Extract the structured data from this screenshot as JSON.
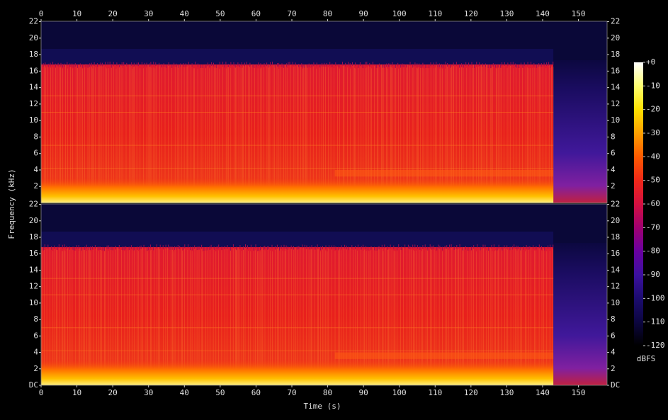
{
  "chart_data": {
    "type": "spectrogram",
    "xlabel": "Time (s)",
    "ylabel": "Frequency (kHz)",
    "xlim": [
      0,
      158
    ],
    "xticks": [
      0,
      10,
      20,
      30,
      40,
      50,
      60,
      70,
      80,
      90,
      100,
      110,
      120,
      130,
      140,
      150
    ],
    "channels": [
      {
        "ylim": [
          0,
          22.05
        ],
        "yticks": [
          2,
          4,
          6,
          8,
          10,
          12,
          14,
          16,
          18,
          20,
          22
        ]
      },
      {
        "ylim": [
          0,
          22.05
        ],
        "yticks": [
          {
            "value": 0,
            "label": "DC"
          },
          2,
          4,
          6,
          8,
          10,
          12,
          14,
          16,
          18,
          20,
          22
        ]
      }
    ],
    "colorbar": {
      "label": "dBFS",
      "lim": [
        -120,
        0
      ],
      "ticks": [
        {
          "value": 0,
          "label": "+0"
        },
        -10,
        -20,
        -30,
        -40,
        -50,
        -60,
        -70,
        -80,
        -90,
        -100,
        -110,
        -120
      ],
      "colors": [
        "#ffffff",
        "#ffff70",
        "#ffe000",
        "#ffa000",
        "#ff5a00",
        "#f02818",
        "#d41040",
        "#a00070",
        "#6a00a0",
        "#3c10a0",
        "#1c0c70",
        "#0c0640",
        "#000000"
      ]
    }
  }
}
